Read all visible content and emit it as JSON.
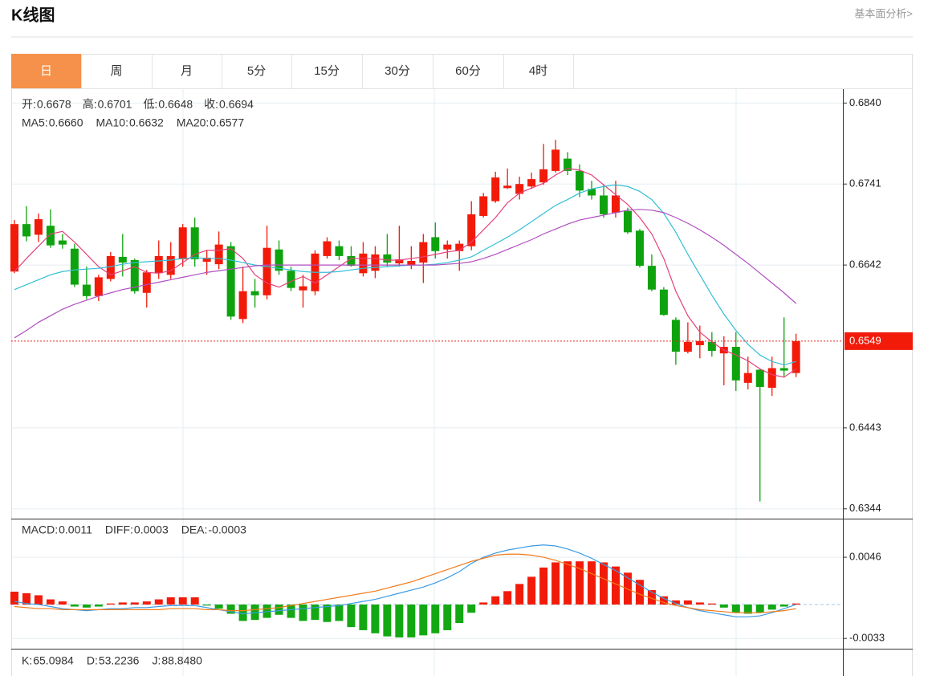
{
  "header": {
    "title": "K线图",
    "link": "基本面分析>"
  },
  "tabs": [
    "日",
    "周",
    "月",
    "5分",
    "15分",
    "30分",
    "60分",
    "4时"
  ],
  "info": {
    "ohlc": [
      {
        "label": "开:",
        "value": "0.6678"
      },
      {
        "label": "高:",
        "value": "0.6701"
      },
      {
        "label": "低:",
        "value": "0.6648"
      },
      {
        "label": "收:",
        "value": "0.6694"
      }
    ],
    "ma": [
      {
        "label": "MA5:",
        "value": "0.6660"
      },
      {
        "label": "MA10:",
        "value": "0.6632"
      },
      {
        "label": "MA20:",
        "value": "0.6577"
      }
    ],
    "macd": [
      {
        "label": "MACD:",
        "value": "0.0011"
      },
      {
        "label": "DIFF:",
        "value": "0.0003"
      },
      {
        "label": "DEA:",
        "value": "-0.0003"
      }
    ],
    "kdj": [
      {
        "label": "K:",
        "value": "65.0984"
      },
      {
        "label": "D:",
        "value": "53.2236"
      },
      {
        "label": "J:",
        "value": "88.8480"
      }
    ]
  },
  "chart_data": [
    {
      "type": "candlestick",
      "up_color": "#f21b0a",
      "down_color": "#0ea30e",
      "open": [
        0.6634,
        0.6692,
        0.6679,
        0.669,
        0.6672,
        0.6662,
        0.6618,
        0.6604,
        0.6625,
        0.6652,
        0.6648,
        0.6608,
        0.6632,
        0.663,
        0.6649,
        0.6688,
        0.6646,
        0.6643,
        0.6665,
        0.6576,
        0.661,
        0.6605,
        0.6661,
        0.6635,
        0.6611,
        0.661,
        0.6653,
        0.6665,
        0.6653,
        0.6632,
        0.6635,
        0.6655,
        0.6644,
        0.6642,
        0.6645,
        0.6676,
        0.6661,
        0.6659,
        0.6665,
        0.6702,
        0.672,
        0.6736,
        0.6729,
        0.6738,
        0.6743,
        0.6757,
        0.6772,
        0.6757,
        0.6735,
        0.6727,
        0.6706,
        0.6708,
        0.6684,
        0.6641,
        0.6612,
        0.6575,
        0.6536,
        0.6544,
        0.6548,
        0.6534,
        0.6542,
        0.6498,
        0.6514,
        0.6492,
        0.6516,
        0.651
      ],
      "high": [
        0.6697,
        0.6714,
        0.6705,
        0.671,
        0.668,
        0.6668,
        0.664,
        0.663,
        0.6658,
        0.668,
        0.665,
        0.6636,
        0.6672,
        0.667,
        0.6692,
        0.67,
        0.666,
        0.6683,
        0.667,
        0.664,
        0.6625,
        0.669,
        0.6672,
        0.664,
        0.663,
        0.666,
        0.6676,
        0.6672,
        0.6665,
        0.667,
        0.6665,
        0.668,
        0.669,
        0.6665,
        0.668,
        0.6694,
        0.6672,
        0.6672,
        0.672,
        0.673,
        0.6756,
        0.676,
        0.675,
        0.6755,
        0.679,
        0.6795,
        0.678,
        0.6765,
        0.6745,
        0.674,
        0.6745,
        0.6712,
        0.6686,
        0.6655,
        0.6615,
        0.6578,
        0.6572,
        0.6568,
        0.656,
        0.6555,
        0.656,
        0.653,
        0.6515,
        0.653,
        0.6578,
        0.6558
      ],
      "low": [
        0.6632,
        0.6671,
        0.667,
        0.6663,
        0.6662,
        0.6615,
        0.66,
        0.6598,
        0.6622,
        0.6628,
        0.6607,
        0.659,
        0.6625,
        0.6625,
        0.664,
        0.664,
        0.663,
        0.6637,
        0.6575,
        0.6571,
        0.659,
        0.66,
        0.663,
        0.661,
        0.659,
        0.6605,
        0.665,
        0.6648,
        0.664,
        0.6628,
        0.6626,
        0.664,
        0.664,
        0.6637,
        0.662,
        0.665,
        0.665,
        0.6635,
        0.666,
        0.67,
        0.6718,
        0.6735,
        0.6722,
        0.6735,
        0.674,
        0.6755,
        0.6752,
        0.6725,
        0.6722,
        0.67,
        0.67,
        0.668,
        0.6639,
        0.661,
        0.658,
        0.652,
        0.6534,
        0.6528,
        0.653,
        0.6495,
        0.6488,
        0.649,
        0.6353,
        0.6482,
        0.6505,
        0.6505
      ],
      "close": [
        0.6692,
        0.6677,
        0.6698,
        0.6666,
        0.6667,
        0.6618,
        0.6604,
        0.6627,
        0.6653,
        0.6645,
        0.661,
        0.6633,
        0.6653,
        0.6653,
        0.6688,
        0.6649,
        0.6651,
        0.6667,
        0.6579,
        0.661,
        0.6605,
        0.6663,
        0.6635,
        0.6614,
        0.6616,
        0.6656,
        0.6671,
        0.6653,
        0.6641,
        0.6656,
        0.6655,
        0.6645,
        0.6649,
        0.6647,
        0.667,
        0.6659,
        0.6667,
        0.6668,
        0.6704,
        0.6726,
        0.6749,
        0.6739,
        0.6741,
        0.6747,
        0.6759,
        0.6783,
        0.6757,
        0.6733,
        0.6727,
        0.6704,
        0.6727,
        0.6682,
        0.6641,
        0.6612,
        0.6581,
        0.6536,
        0.6548,
        0.6549,
        0.6537,
        0.6542,
        0.6501,
        0.651,
        0.6493,
        0.6516,
        0.6513,
        0.6549
      ],
      "series": [
        {
          "name": "MA5",
          "color": "#e5407c",
          "values": [
            0.6634,
            0.665,
            0.6665,
            0.668,
            0.6683,
            0.667,
            0.6655,
            0.664,
            0.663,
            0.6635,
            0.664,
            0.6633,
            0.6632,
            0.6635,
            0.6645,
            0.6655,
            0.666,
            0.666,
            0.6662,
            0.665,
            0.663,
            0.662,
            0.6615,
            0.6622,
            0.6628,
            0.662,
            0.663,
            0.664,
            0.665,
            0.665,
            0.665,
            0.6648,
            0.6648,
            0.665,
            0.6652,
            0.6655,
            0.6658,
            0.666,
            0.667,
            0.6685,
            0.67,
            0.6718,
            0.673,
            0.6736,
            0.6742,
            0.6752,
            0.676,
            0.6758,
            0.6752,
            0.674,
            0.6728,
            0.6716,
            0.67,
            0.668,
            0.665,
            0.661,
            0.658,
            0.656,
            0.6548,
            0.6538,
            0.6532,
            0.6525,
            0.6515,
            0.6508,
            0.6505,
            0.6515
          ]
        },
        {
          "name": "MA10",
          "color": "#32bfd6",
          "values": [
            0.6612,
            0.6618,
            0.6624,
            0.663,
            0.6634,
            0.6636,
            0.6637,
            0.6638,
            0.664,
            0.6643,
            0.6645,
            0.6646,
            0.6647,
            0.6648,
            0.665,
            0.6651,
            0.665,
            0.665,
            0.6648,
            0.6645,
            0.6642,
            0.664,
            0.6638,
            0.6636,
            0.6634,
            0.6633,
            0.6633,
            0.6634,
            0.6636,
            0.6638,
            0.6639,
            0.664,
            0.6641,
            0.6642,
            0.6642,
            0.6643,
            0.6645,
            0.6648,
            0.6652,
            0.666,
            0.6668,
            0.6676,
            0.6685,
            0.6695,
            0.6705,
            0.6715,
            0.6722,
            0.673,
            0.6735,
            0.6738,
            0.674,
            0.6738,
            0.6732,
            0.6722,
            0.6705,
            0.6682,
            0.6655,
            0.663,
            0.6605,
            0.6582,
            0.6562,
            0.6545,
            0.6532,
            0.6524,
            0.652,
            0.6524
          ]
        },
        {
          "name": "MA20",
          "color": "#b04ec0",
          "values": [
            0.6553,
            0.6562,
            0.6572,
            0.658,
            0.6588,
            0.6594,
            0.6599,
            0.6604,
            0.6608,
            0.6612,
            0.6615,
            0.6618,
            0.6621,
            0.6624,
            0.6627,
            0.663,
            0.6633,
            0.6635,
            0.6637,
            0.6639,
            0.6641,
            0.6642,
            0.6642,
            0.6642,
            0.6642,
            0.6642,
            0.6642,
            0.6642,
            0.6642,
            0.6642,
            0.6642,
            0.6642,
            0.6642,
            0.6642,
            0.6642,
            0.6642,
            0.6643,
            0.6644,
            0.6646,
            0.665,
            0.6655,
            0.6661,
            0.6667,
            0.6673,
            0.668,
            0.6686,
            0.6692,
            0.6697,
            0.67,
            0.6703,
            0.6706,
            0.6709,
            0.671,
            0.6709,
            0.6706,
            0.67,
            0.6693,
            0.6685,
            0.6676,
            0.6666,
            0.6655,
            0.6644,
            0.6632,
            0.662,
            0.6608,
            0.6595
          ]
        }
      ],
      "last_price": 0.6549,
      "ylim": [
        0.6333,
        0.6857
      ],
      "yticks": [
        {
          "value": 0.684,
          "label": "0.6840"
        },
        0.6741,
        0.6642,
        0.6443,
        0.6344
      ],
      "grid": true
    },
    {
      "type": "macd",
      "up_color": "#f21b0a",
      "down_color": "#13a813",
      "values": [
        0.00125,
        0.0011,
        0.0009,
        0.0005,
        0.0003,
        -0.0002,
        -0.0003,
        -0.0002,
        0.0001,
        0.0002,
        0.0002,
        0.0003,
        0.0005,
        0.0007,
        0.0007,
        0.0007,
        -0.0001,
        -0.0004,
        -0.0009,
        -0.0016,
        -0.0015,
        -0.0013,
        -0.001,
        -0.0013,
        -0.0016,
        -0.0015,
        -0.0017,
        -0.0016,
        -0.0022,
        -0.0025,
        -0.0028,
        -0.0031,
        -0.0032,
        -0.0032,
        -0.003,
        -0.0028,
        -0.0025,
        -0.0018,
        -0.0008,
        0.0002,
        0.0008,
        0.0013,
        0.002,
        0.0027,
        0.0036,
        0.0041,
        0.0042,
        0.0042,
        0.0042,
        0.0041,
        0.0037,
        0.0031,
        0.0024,
        0.0014,
        0.0008,
        0.0004,
        0.0004,
        0.0002,
        0.0001,
        -0.0003,
        -0.0008,
        -0.0009,
        -0.0008,
        -0.0005,
        -0.0002,
        0.0001
      ],
      "series": [
        {
          "name": "DIFF",
          "color": "#3b9be2",
          "values": [
            0.0003,
            0.0001,
            0,
            -0.0002,
            -0.0004,
            -0.0005,
            -0.0006,
            -0.0005,
            -0.0004,
            -0.0004,
            -0.0003,
            -0.0003,
            -0.0002,
            -0.0001,
            -0.0001,
            -0.0001,
            -0.0003,
            -0.0005,
            -0.0007,
            -0.0009,
            -0.0008,
            -0.0007,
            -0.0006,
            -0.0005,
            -0.0004,
            -0.0003,
            -0.0002,
            -0.0001,
            0.0001,
            0.0003,
            0.0005,
            0.0008,
            0.0011,
            0.0014,
            0.0017,
            0.0021,
            0.0026,
            0.0032,
            0.004,
            0.0046,
            0.005,
            0.0053,
            0.0055,
            0.0057,
            0.0058,
            0.0057,
            0.0054,
            0.005,
            0.0045,
            0.0039,
            0.0033,
            0.0026,
            0.0019,
            0.0012,
            0.0006,
            0.0001,
            -0.0003,
            -0.0006,
            -0.0008,
            -0.001,
            -0.0012,
            -0.0012,
            -0.0011,
            -0.0008,
            -0.0004,
            0
          ]
        },
        {
          "name": "DEA",
          "color": "#f07a1a",
          "values": [
            -0.0002,
            -0.0003,
            -0.0004,
            -0.0004,
            -0.0005,
            -0.0005,
            -0.0005,
            -0.0005,
            -0.0005,
            -0.0005,
            -0.0005,
            -0.0005,
            -0.0005,
            -0.0004,
            -0.0004,
            -0.0004,
            -0.0005,
            -0.0005,
            -0.0006,
            -0.0006,
            -0.0005,
            -0.0004,
            -0.0003,
            -0.0001,
            0.0001,
            0.0003,
            0.0005,
            0.0007,
            0.0009,
            0.0011,
            0.0013,
            0.0016,
            0.0019,
            0.0022,
            0.0026,
            0.003,
            0.0034,
            0.0038,
            0.0042,
            0.0045,
            0.0048,
            0.0049,
            0.0049,
            0.0048,
            0.0046,
            0.0043,
            0.0039,
            0.0035,
            0.003,
            0.0025,
            0.002,
            0.0015,
            0.001,
            0.0006,
            0.0002,
            -0.0001,
            -0.0003,
            -0.0005,
            -0.0006,
            -0.0007,
            -0.0008,
            -0.0008,
            -0.0008,
            -0.0007,
            -0.0006,
            -0.0004
          ]
        }
      ],
      "ylim": [
        -0.0043,
        0.0082
      ],
      "yticks": [
        0.0046,
        -0.0033
      ],
      "grid": true
    }
  ]
}
